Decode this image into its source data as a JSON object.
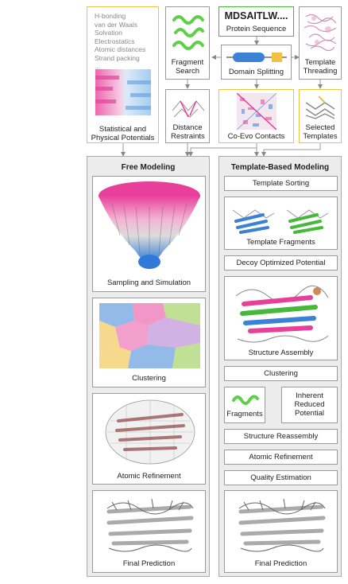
{
  "energy_terms": [
    "H-bonding",
    "van der Waals",
    "Solvation",
    "Electrostatics",
    "Atomic distances",
    "Strand packing",
    "..."
  ],
  "stat_potentials_label": "Statistical and Physical Potentials",
  "fragment_search_label": "Fragment Search",
  "sequence_text": "MDSAITLW....",
  "sequence_label": "Protein Sequence",
  "domain_splitting_label": "Domain Splitting",
  "template_threading_label": "Template Threading",
  "distance_restraints_label": "Distance Restraints",
  "coevo_label": "Co-Evo Contacts",
  "selected_templates_label": "Selected Templates",
  "free_modeling": {
    "title": "Free Modeling",
    "steps": [
      "Sampling and Simulation",
      "Clustering",
      "Atomic Refinement",
      "Final Prediction"
    ]
  },
  "template_modeling": {
    "title": "Template-Based Modeling",
    "template_sorting": "Template Sorting",
    "template_fragments": "Template Fragments",
    "decoy_potential": "Decoy Optimized Potential",
    "structure_assembly": "Structure Assembly",
    "clustering": "Clustering",
    "fragments": "Fragments",
    "inherent_potential": "Inherent Reduced Potential",
    "structure_reassembly": "Structure Reassembly",
    "atomic_refinement": "Atomic Refinement",
    "quality_estimation": "Quality Estimation",
    "final_prediction": "Final Prediction"
  },
  "colors": {
    "yellow_border": "#f2c043",
    "green_border": "#46b83a",
    "pink": "#e8409a",
    "blue": "#3b82d6",
    "panel_bg": "#ececec"
  }
}
